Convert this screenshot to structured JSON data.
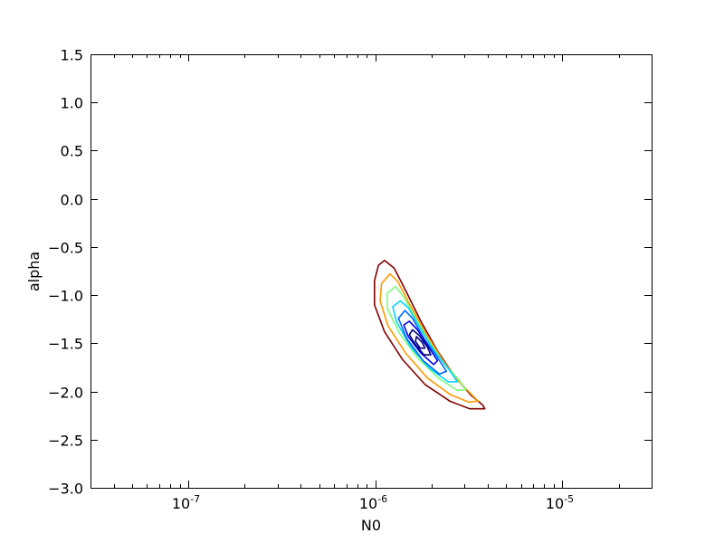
{
  "chart_data": {
    "type": "contour",
    "title": "",
    "xlabel": "N0",
    "ylabel": "alpha",
    "xscale": "log",
    "xlim": [
      3e-08,
      3e-05
    ],
    "ylim": [
      -3.0,
      1.5
    ],
    "grid": false,
    "x_major_ticks": [
      {
        "value": 1e-07,
        "label": "10",
        "exp": "-7"
      },
      {
        "value": 1e-06,
        "label": "10",
        "exp": "-6"
      },
      {
        "value": 1e-05,
        "label": "10",
        "exp": "-5"
      }
    ],
    "x_minor_ticks": [
      4e-08,
      5e-08,
      6e-08,
      7e-08,
      8e-08,
      9e-08,
      2e-07,
      3e-07,
      4e-07,
      5e-07,
      6e-07,
      7e-07,
      8e-07,
      9e-07,
      2e-06,
      3e-06,
      4e-06,
      5e-06,
      6e-06,
      7e-06,
      8e-06,
      9e-06,
      2e-05,
      3e-05
    ],
    "y_ticks": [
      {
        "value": 1.5,
        "label": "1.5"
      },
      {
        "value": 1.0,
        "label": "1.0"
      },
      {
        "value": 0.5,
        "label": "0.5"
      },
      {
        "value": 0.0,
        "label": "0.0"
      },
      {
        "value": -0.5,
        "label": "−0.5"
      },
      {
        "value": -1.0,
        "label": "−1.0"
      },
      {
        "value": -1.5,
        "label": "−1.5"
      },
      {
        "value": -2.0,
        "label": "−2.0"
      },
      {
        "value": -2.5,
        "label": "−2.5"
      },
      {
        "value": -3.0,
        "label": "−3.0"
      }
    ],
    "contours": [
      {
        "color": "#7f0000",
        "points": [
          [
            1.12e-06,
            -0.64
          ],
          [
            1.26e-06,
            -0.72
          ],
          [
            1.45e-06,
            -0.95
          ],
          [
            1.75e-06,
            -1.27
          ],
          [
            2.15e-06,
            -1.58
          ],
          [
            2.65e-06,
            -1.84
          ],
          [
            3.25e-06,
            -2.04
          ],
          [
            3.75e-06,
            -2.14
          ],
          [
            3.85e-06,
            -2.18
          ],
          [
            3.2e-06,
            -2.18
          ],
          [
            2.5e-06,
            -2.1
          ],
          [
            1.85e-06,
            -1.93
          ],
          [
            1.4e-06,
            -1.67
          ],
          [
            1.12e-06,
            -1.38
          ],
          [
            9.9e-07,
            -1.1
          ],
          [
            9.9e-07,
            -0.85
          ],
          [
            1.04e-06,
            -0.69
          ],
          [
            1.12e-06,
            -0.64
          ]
        ]
      },
      {
        "color": "#ff9a00",
        "points": [
          [
            1.2e-06,
            -0.78
          ],
          [
            1.32e-06,
            -0.86
          ],
          [
            1.52e-06,
            -1.09
          ],
          [
            1.84e-06,
            -1.38
          ],
          [
            2.25e-06,
            -1.65
          ],
          [
            2.75e-06,
            -1.88
          ],
          [
            3.3e-06,
            -2.04
          ],
          [
            3.55e-06,
            -2.1
          ],
          [
            3.15e-06,
            -2.11
          ],
          [
            2.5e-06,
            -2.03
          ],
          [
            1.9e-06,
            -1.86
          ],
          [
            1.45e-06,
            -1.6
          ],
          [
            1.17e-06,
            -1.32
          ],
          [
            1.06e-06,
            -1.06
          ],
          [
            1.08e-06,
            -0.88
          ],
          [
            1.2e-06,
            -0.78
          ]
        ]
      },
      {
        "color": "#7dff7a",
        "points": [
          [
            1.28e-06,
            -0.91
          ],
          [
            1.42e-06,
            -1.02
          ],
          [
            1.62e-06,
            -1.22
          ],
          [
            1.95e-06,
            -1.49
          ],
          [
            2.35e-06,
            -1.72
          ],
          [
            2.8e-06,
            -1.88
          ],
          [
            3.05e-06,
            -1.98
          ],
          [
            2.75e-06,
            -1.99
          ],
          [
            2.2e-06,
            -1.87
          ],
          [
            1.7e-06,
            -1.66
          ],
          [
            1.35e-06,
            -1.4
          ],
          [
            1.16e-06,
            -1.14
          ],
          [
            1.16e-06,
            -0.98
          ],
          [
            1.28e-06,
            -0.91
          ]
        ]
      },
      {
        "color": "#00d4ff",
        "points": [
          [
            1.36e-06,
            -1.06
          ],
          [
            1.5e-06,
            -1.13
          ],
          [
            1.72e-06,
            -1.33
          ],
          [
            2.05e-06,
            -1.57
          ],
          [
            2.45e-06,
            -1.76
          ],
          [
            2.75e-06,
            -1.9
          ],
          [
            2.45e-06,
            -1.9
          ],
          [
            1.95e-06,
            -1.76
          ],
          [
            1.55e-06,
            -1.54
          ],
          [
            1.3e-06,
            -1.28
          ],
          [
            1.24e-06,
            -1.12
          ],
          [
            1.36e-06,
            -1.06
          ]
        ]
      },
      {
        "color": "#0066ff",
        "points": [
          [
            1.44e-06,
            -1.16
          ],
          [
            1.58e-06,
            -1.24
          ],
          [
            1.82e-06,
            -1.45
          ],
          [
            2.12e-06,
            -1.63
          ],
          [
            2.4e-06,
            -1.79
          ],
          [
            2.2e-06,
            -1.82
          ],
          [
            1.8e-06,
            -1.68
          ],
          [
            1.47e-06,
            -1.45
          ],
          [
            1.33e-06,
            -1.24
          ],
          [
            1.44e-06,
            -1.16
          ]
        ]
      },
      {
        "color": "#0000ee",
        "points": [
          [
            1.52e-06,
            -1.27
          ],
          [
            1.68e-06,
            -1.36
          ],
          [
            1.9e-06,
            -1.52
          ],
          [
            2.15e-06,
            -1.68
          ],
          [
            2.05e-06,
            -1.72
          ],
          [
            1.75e-06,
            -1.6
          ],
          [
            1.5e-06,
            -1.43
          ],
          [
            1.42e-06,
            -1.31
          ],
          [
            1.52e-06,
            -1.27
          ]
        ]
      },
      {
        "color": "#00007f",
        "points": [
          [
            1.58e-06,
            -1.36
          ],
          [
            1.72e-06,
            -1.42
          ],
          [
            1.9e-06,
            -1.54
          ],
          [
            1.98e-06,
            -1.62
          ],
          [
            1.82e-06,
            -1.62
          ],
          [
            1.62e-06,
            -1.5
          ],
          [
            1.52e-06,
            -1.41
          ],
          [
            1.58e-06,
            -1.36
          ]
        ]
      },
      {
        "color": "#00007f",
        "points": [
          [
            1.66e-06,
            -1.43
          ],
          [
            1.78e-06,
            -1.49
          ],
          [
            1.84e-06,
            -1.55
          ],
          [
            1.74e-06,
            -1.55
          ],
          [
            1.64e-06,
            -1.48
          ],
          [
            1.66e-06,
            -1.43
          ]
        ]
      }
    ]
  }
}
